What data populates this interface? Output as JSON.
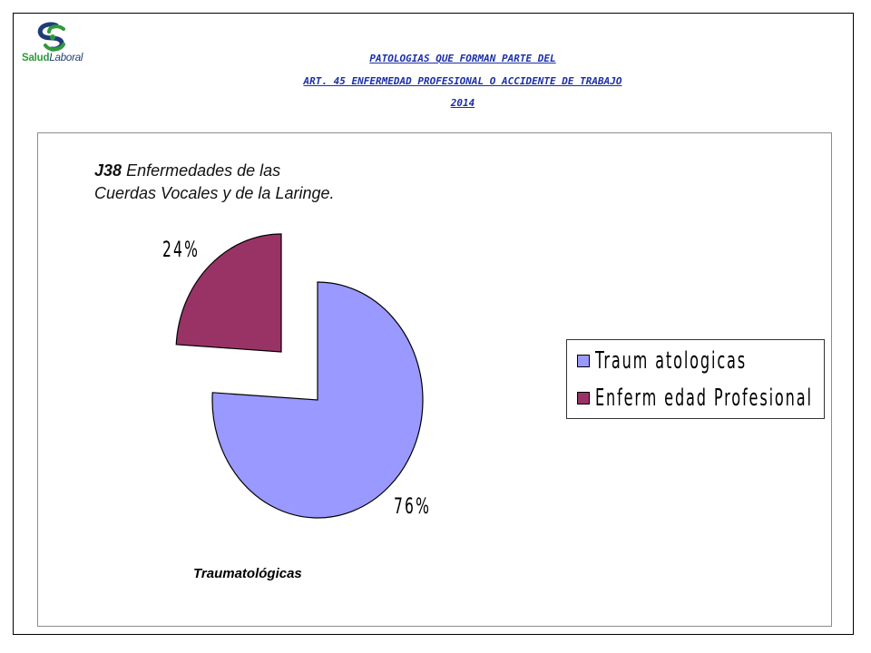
{
  "logo": {
    "text_part1": "Salud",
    "text_part2": "Laboral"
  },
  "header": {
    "line1": "PATOLOGIAS QUE FORMAN PARTE DEL",
    "line2": "ART. 45 ENFERMEDAD PROFESIONAL  O ACCIDENTE  DE TRABAJO",
    "line3": "2014"
  },
  "chart_data": {
    "type": "pie",
    "title_code": "J38",
    "title_text": "Enfermedades de las Cuerdas Vocales y de la Laringe.",
    "categories": [
      "Traum atologicas",
      "Enferm edad Profesional"
    ],
    "values": [
      76,
      24
    ],
    "data_labels": [
      "76%",
      "24%"
    ],
    "colors": [
      "#9999ff",
      "#993366"
    ],
    "exploded": true,
    "legend_position": "right",
    "footer": "Traumatológicas"
  }
}
